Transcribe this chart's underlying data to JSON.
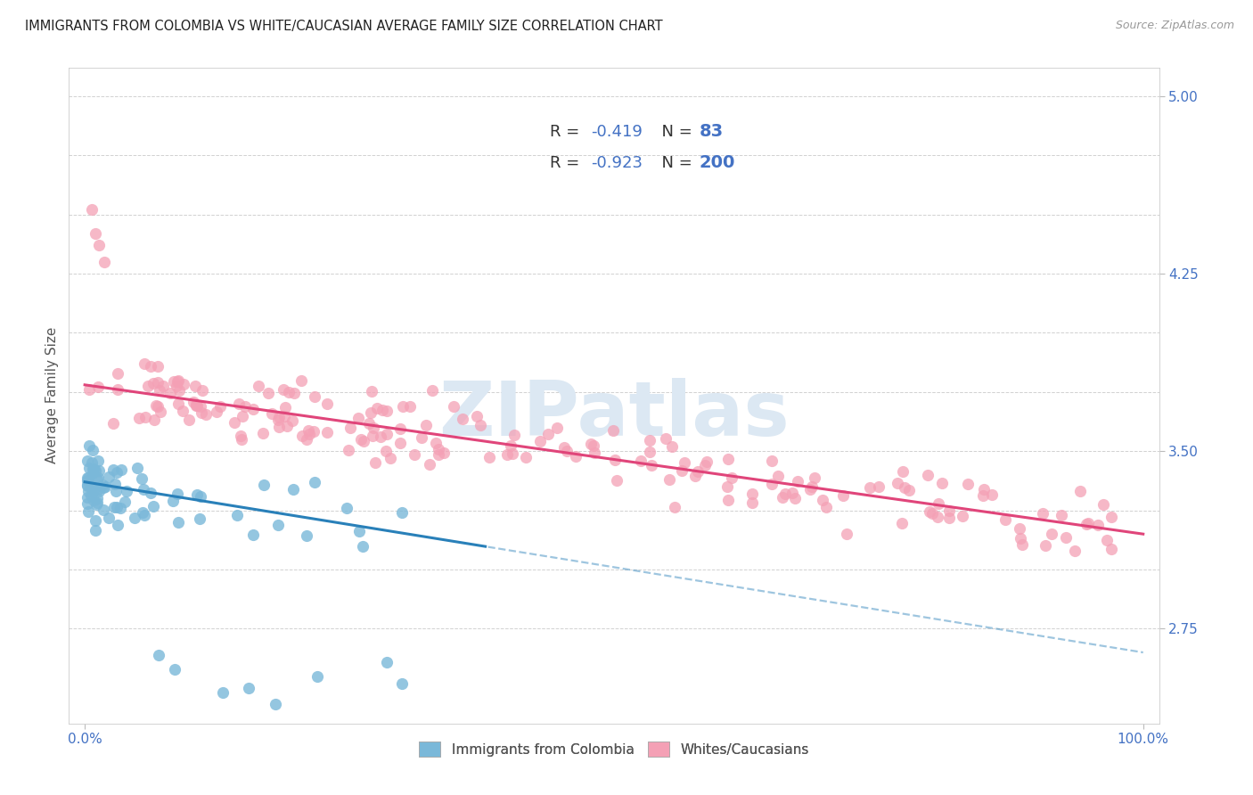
{
  "title": "IMMIGRANTS FROM COLOMBIA VS WHITE/CAUCASIAN AVERAGE FAMILY SIZE CORRELATION CHART",
  "source": "Source: ZipAtlas.com",
  "ylabel": "Average Family Size",
  "yticks_shown": [
    2.75,
    3.5,
    4.25,
    5.0
  ],
  "ytick_labels": [
    "2.75",
    "3.50",
    "4.25",
    "5.00"
  ],
  "ymin": 2.35,
  "ymax": 5.12,
  "xmin": -0.015,
  "xmax": 1.015,
  "blue_R": -0.419,
  "blue_N": 83,
  "pink_R": -0.923,
  "pink_N": 200,
  "blue_scatter_color": "#7ab8d9",
  "pink_scatter_color": "#f4a0b5",
  "blue_line_color": "#2980b9",
  "pink_line_color": "#e0457a",
  "legend_label_blue": "Immigrants from Colombia",
  "legend_label_pink": "Whites/Caucasians",
  "watermark": "ZIPatlas",
  "watermark_color": "#dce8f3",
  "title_color": "#222222",
  "axis_label_color": "#4472c4",
  "tick_color": "#4472c4",
  "grid_color": "#cccccc",
  "blue_slope": -0.72,
  "blue_intercept": 3.37,
  "pink_slope": -0.63,
  "pink_intercept": 3.78
}
